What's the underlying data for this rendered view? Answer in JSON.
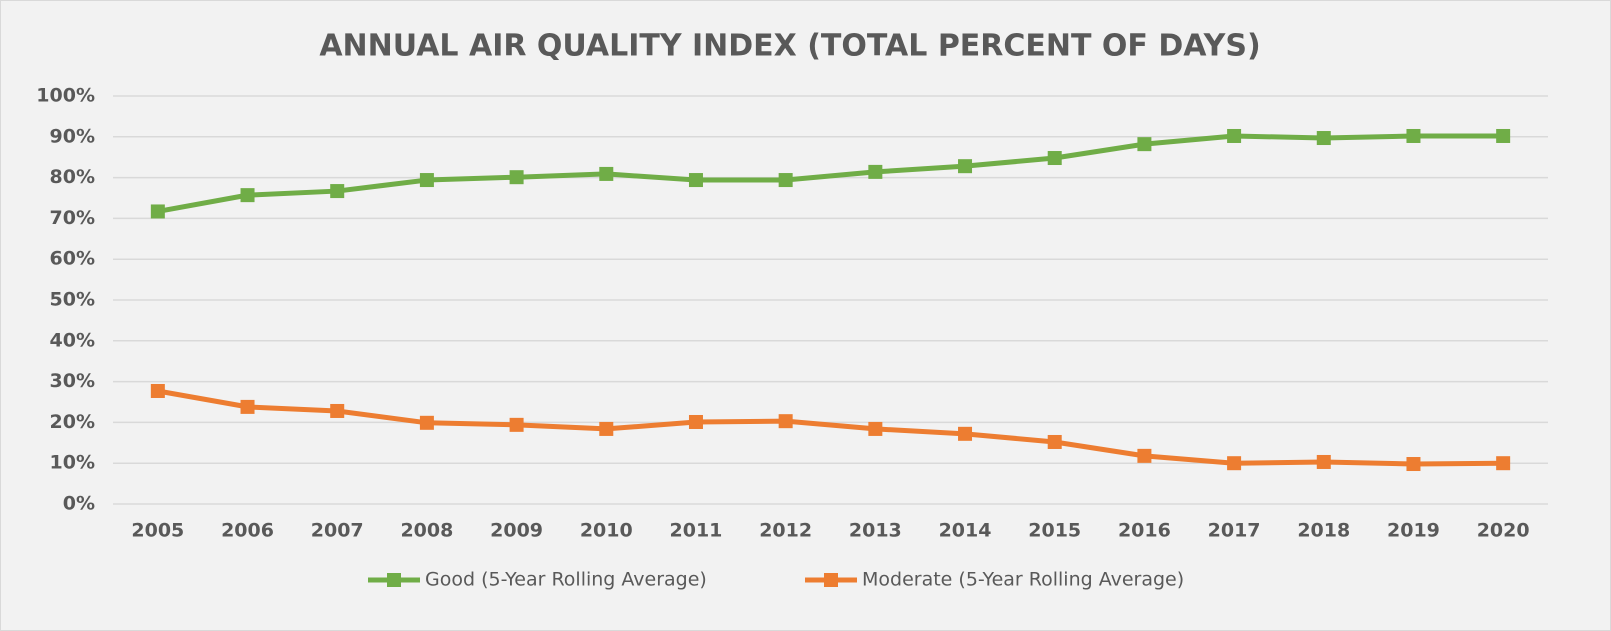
{
  "chart_data": {
    "type": "line",
    "title": "ANNUAL AIR QUALITY INDEX (TOTAL PERCENT OF DAYS)",
    "categories": [
      "2005",
      "2006",
      "2007",
      "2008",
      "2009",
      "2010",
      "2011",
      "2012",
      "2013",
      "2014",
      "2015",
      "2016",
      "2017",
      "2018",
      "2019",
      "2020"
    ],
    "series": [
      {
        "name": "Good (5-Year Rolling Average)",
        "color": "#70ad47",
        "values": [
          71.7,
          75.7,
          76.7,
          79.4,
          80.1,
          80.9,
          79.4,
          79.4,
          81.4,
          82.8,
          84.8,
          88.2,
          90.2,
          89.7,
          90.2,
          90.2
        ]
      },
      {
        "name": "Moderate (5-Year Rolling Average)",
        "color": "#ed7d31",
        "values": [
          27.7,
          23.8,
          22.8,
          19.9,
          19.4,
          18.4,
          20.1,
          20.3,
          18.4,
          17.2,
          15.2,
          11.8,
          10.0,
          10.3,
          9.8,
          10.0
        ]
      }
    ],
    "ylim": [
      0,
      100
    ],
    "yticks": [
      {
        "value": 0,
        "label": "0%"
      },
      {
        "value": 10,
        "label": "10%"
      },
      {
        "value": 20,
        "label": "20%"
      },
      {
        "value": 30,
        "label": "30%"
      },
      {
        "value": 40,
        "label": "40%"
      },
      {
        "value": 50,
        "label": "50%"
      },
      {
        "value": 60,
        "label": "60%"
      },
      {
        "value": 70,
        "label": "70%"
      },
      {
        "value": 80,
        "label": "80%"
      },
      {
        "value": 90,
        "label": "90%"
      },
      {
        "value": 100,
        "label": "100%"
      }
    ],
    "grid": true,
    "legend": "bottom"
  }
}
